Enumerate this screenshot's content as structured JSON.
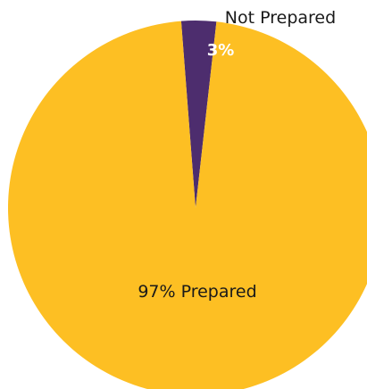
{
  "chart_data": {
    "type": "pie",
    "slices": [
      {
        "name": "Not Prepared",
        "value": 3,
        "label": "3%",
        "color": "#4d2d6e"
      },
      {
        "name": "Prepared",
        "value": 97,
        "label": "97% Prepared",
        "color": "#fdbf23"
      }
    ],
    "legend": "none"
  }
}
